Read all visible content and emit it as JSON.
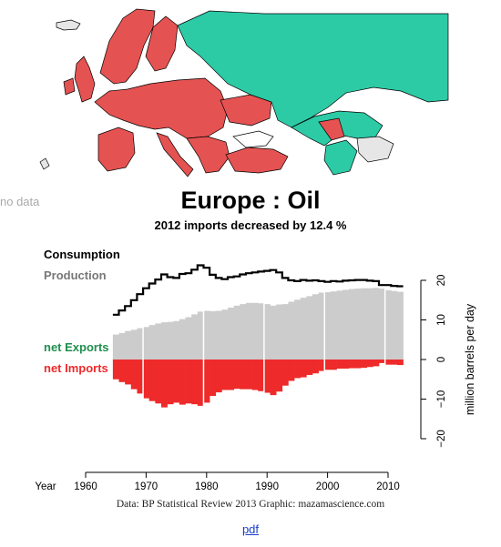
{
  "map": {
    "nodata_label": "no data",
    "colors": {
      "importer": "#e55252",
      "exporter": "#2dcaa6",
      "nodata": "#e6e6e6",
      "border": "#000000"
    }
  },
  "title": "Europe :  Oil",
  "subtitle": "2012 imports decreased by 12.4 %",
  "legend": {
    "consumption": "Consumption",
    "production": "Production",
    "net_exports": "net Exports",
    "net_imports": "net Imports"
  },
  "source": "Data: BP Statistical Review 2013     Graphic: mazamascience.com",
  "pdf_link": "pdf",
  "chart_data": {
    "type": "area",
    "ylabel": "million barrels per day",
    "xlabel": "Year",
    "xlim": [
      1956,
      2014
    ],
    "ylim": [
      -22,
      22
    ],
    "xticks": [
      1960,
      1970,
      1980,
      1990,
      2000,
      2010
    ],
    "yticks": [
      20,
      10,
      0,
      -10,
      -20
    ],
    "colors": {
      "consumption": "#000000",
      "production": "#cccccc",
      "net_exports": "#1e8f4e",
      "net_imports": "#ee2a2a"
    },
    "years": [
      1965,
      1966,
      1967,
      1968,
      1969,
      1970,
      1971,
      1972,
      1973,
      1974,
      1975,
      1976,
      1977,
      1978,
      1979,
      1980,
      1981,
      1982,
      1983,
      1984,
      1985,
      1986,
      1987,
      1988,
      1989,
      1990,
      1991,
      1992,
      1993,
      1994,
      1995,
      1996,
      1997,
      1998,
      1999,
      2000,
      2001,
      2002,
      2003,
      2004,
      2005,
      2006,
      2007,
      2008,
      2009,
      2010,
      2011,
      2012
    ],
    "series": [
      {
        "name": "Consumption",
        "values": [
          11.3,
          12.4,
          13.5,
          15.0,
          16.5,
          18.0,
          19.2,
          20.2,
          21.5,
          20.8,
          20.6,
          21.6,
          21.8,
          22.7,
          23.8,
          23.2,
          21.4,
          20.6,
          20.3,
          20.8,
          21.0,
          21.5,
          21.8,
          22.0,
          22.2,
          22.4,
          22.6,
          22.0,
          20.6,
          20.0,
          19.8,
          20.1,
          19.9,
          20.0,
          19.8,
          19.6,
          19.8,
          19.7,
          19.9,
          20.0,
          20.1,
          20.1,
          19.9,
          19.8,
          18.8,
          18.8,
          18.6,
          18.5
        ]
      },
      {
        "name": "Production",
        "values": [
          6.3,
          6.7,
          7.2,
          7.5,
          7.9,
          8.2,
          8.7,
          9.1,
          9.4,
          9.5,
          9.7,
          10.2,
          10.7,
          11.4,
          12.1,
          12.3,
          12.2,
          12.3,
          12.6,
          13.1,
          13.6,
          14.0,
          14.3,
          14.3,
          14.2,
          14.0,
          13.6,
          13.9,
          14.0,
          14.6,
          15.1,
          15.6,
          16.0,
          16.5,
          16.9,
          17.0,
          17.2,
          17.4,
          17.6,
          17.8,
          17.9,
          18.0,
          18.0,
          18.1,
          17.9,
          17.5,
          17.3,
          17.1
        ]
      }
    ]
  }
}
